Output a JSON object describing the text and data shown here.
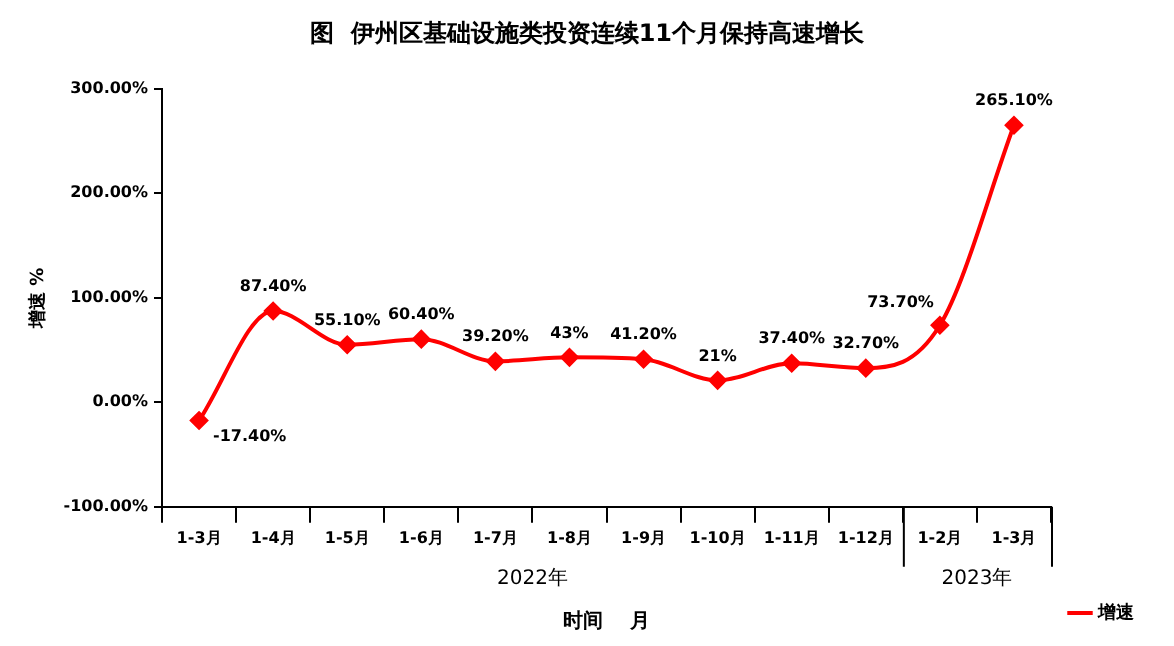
{
  "chart_data": {
    "type": "line",
    "title": "图  伊州区基础设施类投资连续11个月保持高速增长",
    "xlabel": "时间    月",
    "ylabel": "增速 %",
    "categories": [
      "1-3月",
      "1-4月",
      "1-5月",
      "1-6月",
      "1-7月",
      "1-8月",
      "1-9月",
      "1-10月",
      "1-11月",
      "1-12月",
      "1-2月",
      "1-3月"
    ],
    "series": [
      {
        "name": "增速",
        "color": "#ff0000",
        "values": [
          -17.4,
          87.4,
          55.1,
          60.4,
          39.2,
          43,
          41.2,
          21,
          37.4,
          32.7,
          73.7,
          265.1
        ],
        "value_labels": [
          "-17.40%",
          "87.40%",
          "55.10%",
          "60.40%",
          "39.20%",
          "43%",
          "41.20%",
          "21%",
          "37.40%",
          "32.70%",
          "73.70%",
          "265.10%"
        ]
      }
    ],
    "ylim": [
      -100,
      300
    ],
    "yticks": [
      {
        "value": -100,
        "label": "-100.00%"
      },
      {
        "value": 0,
        "label": "0.00%"
      },
      {
        "value": 100,
        "label": "100.00%"
      },
      {
        "value": 200,
        "label": "200.00%"
      },
      {
        "value": 300,
        "label": "300.00%"
      }
    ],
    "annotations": [
      "2022年",
      "2023年"
    ],
    "grid": false,
    "legend": "right",
    "marker": "diamond",
    "line_style": "solid"
  }
}
